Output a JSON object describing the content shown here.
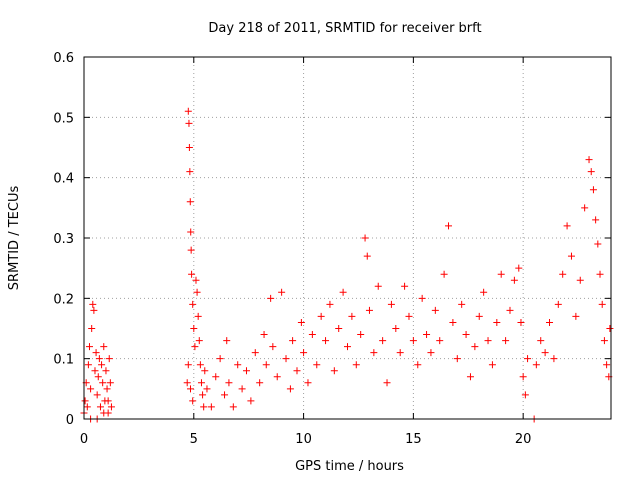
{
  "chart_data": {
    "type": "scatter",
    "title": "Day 218 of 2011, SRMTID for receiver brft",
    "xlabel": "GPS time / hours",
    "ylabel": "SRMTID / TECUs",
    "xlim": [
      0,
      24
    ],
    "ylim": [
      0,
      0.6
    ],
    "x_ticks": [
      0,
      5,
      10,
      15,
      20
    ],
    "x_tick_labels": [
      "0",
      "5",
      "10",
      "15",
      "20"
    ],
    "y_ticks": [
      0,
      0.1,
      0.2,
      0.3,
      0.4,
      0.5,
      0.6
    ],
    "y_tick_labels": [
      "0",
      "0.1",
      "0.2",
      "0.3",
      "0.4",
      "0.5",
      "0.6"
    ],
    "grid": true,
    "marker": "+",
    "color": "#ff0000",
    "series": [
      {
        "name": "SRMTID",
        "points": [
          [
            0.0,
            0.01
          ],
          [
            0.05,
            0.03
          ],
          [
            0.1,
            0.06
          ],
          [
            0.15,
            0.02
          ],
          [
            0.2,
            0.09
          ],
          [
            0.25,
            0.12
          ],
          [
            0.3,
            0.05
          ],
          [
            0.35,
            0.15
          ],
          [
            0.4,
            0.19
          ],
          [
            0.45,
            0.18
          ],
          [
            0.5,
            0.08
          ],
          [
            0.55,
            0.11
          ],
          [
            0.6,
            0.04
          ],
          [
            0.65,
            0.07
          ],
          [
            0.7,
            0.1
          ],
          [
            0.75,
            0.02
          ],
          [
            0.8,
            0.09
          ],
          [
            0.85,
            0.06
          ],
          [
            0.9,
            0.12
          ],
          [
            0.95,
            0.03
          ],
          [
            1.0,
            0.08
          ],
          [
            1.05,
            0.05
          ],
          [
            1.1,
            0.01
          ],
          [
            1.15,
            0.1
          ],
          [
            1.2,
            0.06
          ],
          [
            1.25,
            0.02
          ],
          [
            0.3,
            0.0
          ],
          [
            0.6,
            0.0
          ],
          [
            0.9,
            0.01
          ],
          [
            1.1,
            0.03
          ],
          [
            4.75,
            0.51
          ],
          [
            4.78,
            0.49
          ],
          [
            4.8,
            0.45
          ],
          [
            4.82,
            0.41
          ],
          [
            4.84,
            0.36
          ],
          [
            4.86,
            0.31
          ],
          [
            4.88,
            0.28
          ],
          [
            4.9,
            0.24
          ],
          [
            4.95,
            0.19
          ],
          [
            5.0,
            0.15
          ],
          [
            5.05,
            0.12
          ],
          [
            5.1,
            0.23
          ],
          [
            5.15,
            0.21
          ],
          [
            5.2,
            0.17
          ],
          [
            5.25,
            0.13
          ],
          [
            5.3,
            0.09
          ],
          [
            5.35,
            0.06
          ],
          [
            5.4,
            0.04
          ],
          [
            5.45,
            0.02
          ],
          [
            4.7,
            0.06
          ],
          [
            4.75,
            0.09
          ],
          [
            4.85,
            0.05
          ],
          [
            4.95,
            0.03
          ],
          [
            5.5,
            0.08
          ],
          [
            5.6,
            0.05
          ],
          [
            5.8,
            0.02
          ],
          [
            6.0,
            0.07
          ],
          [
            6.2,
            0.1
          ],
          [
            6.4,
            0.04
          ],
          [
            6.5,
            0.13
          ],
          [
            6.6,
            0.06
          ],
          [
            6.8,
            0.02
          ],
          [
            7.0,
            0.09
          ],
          [
            7.2,
            0.05
          ],
          [
            7.4,
            0.08
          ],
          [
            7.6,
            0.03
          ],
          [
            7.8,
            0.11
          ],
          [
            8.0,
            0.06
          ],
          [
            8.2,
            0.14
          ],
          [
            8.3,
            0.09
          ],
          [
            8.5,
            0.2
          ],
          [
            8.6,
            0.12
          ],
          [
            8.8,
            0.07
          ],
          [
            9.0,
            0.21
          ],
          [
            9.2,
            0.1
          ],
          [
            9.4,
            0.05
          ],
          [
            9.5,
            0.13
          ],
          [
            9.7,
            0.08
          ],
          [
            9.9,
            0.16
          ],
          [
            10.0,
            0.11
          ],
          [
            10.2,
            0.06
          ],
          [
            10.4,
            0.14
          ],
          [
            10.6,
            0.09
          ],
          [
            10.8,
            0.17
          ],
          [
            11.0,
            0.13
          ],
          [
            11.2,
            0.19
          ],
          [
            11.4,
            0.08
          ],
          [
            11.6,
            0.15
          ],
          [
            11.8,
            0.21
          ],
          [
            12.0,
            0.12
          ],
          [
            12.2,
            0.17
          ],
          [
            12.4,
            0.09
          ],
          [
            12.6,
            0.14
          ],
          [
            12.8,
            0.3
          ],
          [
            12.9,
            0.27
          ],
          [
            13.0,
            0.18
          ],
          [
            13.2,
            0.11
          ],
          [
            13.4,
            0.22
          ],
          [
            13.6,
            0.13
          ],
          [
            13.8,
            0.06
          ],
          [
            14.0,
            0.19
          ],
          [
            14.2,
            0.15
          ],
          [
            14.4,
            0.11
          ],
          [
            14.6,
            0.22
          ],
          [
            14.8,
            0.17
          ],
          [
            15.0,
            0.13
          ],
          [
            15.2,
            0.09
          ],
          [
            15.4,
            0.2
          ],
          [
            15.6,
            0.14
          ],
          [
            15.8,
            0.11
          ],
          [
            16.0,
            0.18
          ],
          [
            16.2,
            0.13
          ],
          [
            16.4,
            0.24
          ],
          [
            16.6,
            0.32
          ],
          [
            16.8,
            0.16
          ],
          [
            17.0,
            0.1
          ],
          [
            17.2,
            0.19
          ],
          [
            17.4,
            0.14
          ],
          [
            17.6,
            0.07
          ],
          [
            17.8,
            0.12
          ],
          [
            18.0,
            0.17
          ],
          [
            18.2,
            0.21
          ],
          [
            18.4,
            0.13
          ],
          [
            18.6,
            0.09
          ],
          [
            18.8,
            0.16
          ],
          [
            19.0,
            0.24
          ],
          [
            19.2,
            0.13
          ],
          [
            19.4,
            0.18
          ],
          [
            19.6,
            0.23
          ],
          [
            19.8,
            0.25
          ],
          [
            19.9,
            0.16
          ],
          [
            20.0,
            0.07
          ],
          [
            20.1,
            0.04
          ],
          [
            20.2,
            0.1
          ],
          [
            20.5,
            0.0
          ],
          [
            20.6,
            0.09
          ],
          [
            20.8,
            0.13
          ],
          [
            21.0,
            0.11
          ],
          [
            21.2,
            0.16
          ],
          [
            21.4,
            0.1
          ],
          [
            21.6,
            0.19
          ],
          [
            21.8,
            0.24
          ],
          [
            22.0,
            0.32
          ],
          [
            22.2,
            0.27
          ],
          [
            22.4,
            0.17
          ],
          [
            22.6,
            0.23
          ],
          [
            22.8,
            0.35
          ],
          [
            23.0,
            0.43
          ],
          [
            23.1,
            0.41
          ],
          [
            23.2,
            0.38
          ],
          [
            23.3,
            0.33
          ],
          [
            23.4,
            0.29
          ],
          [
            23.5,
            0.24
          ],
          [
            23.6,
            0.19
          ],
          [
            23.7,
            0.13
          ],
          [
            23.8,
            0.09
          ],
          [
            23.9,
            0.07
          ],
          [
            23.95,
            0.15
          ]
        ]
      }
    ]
  }
}
